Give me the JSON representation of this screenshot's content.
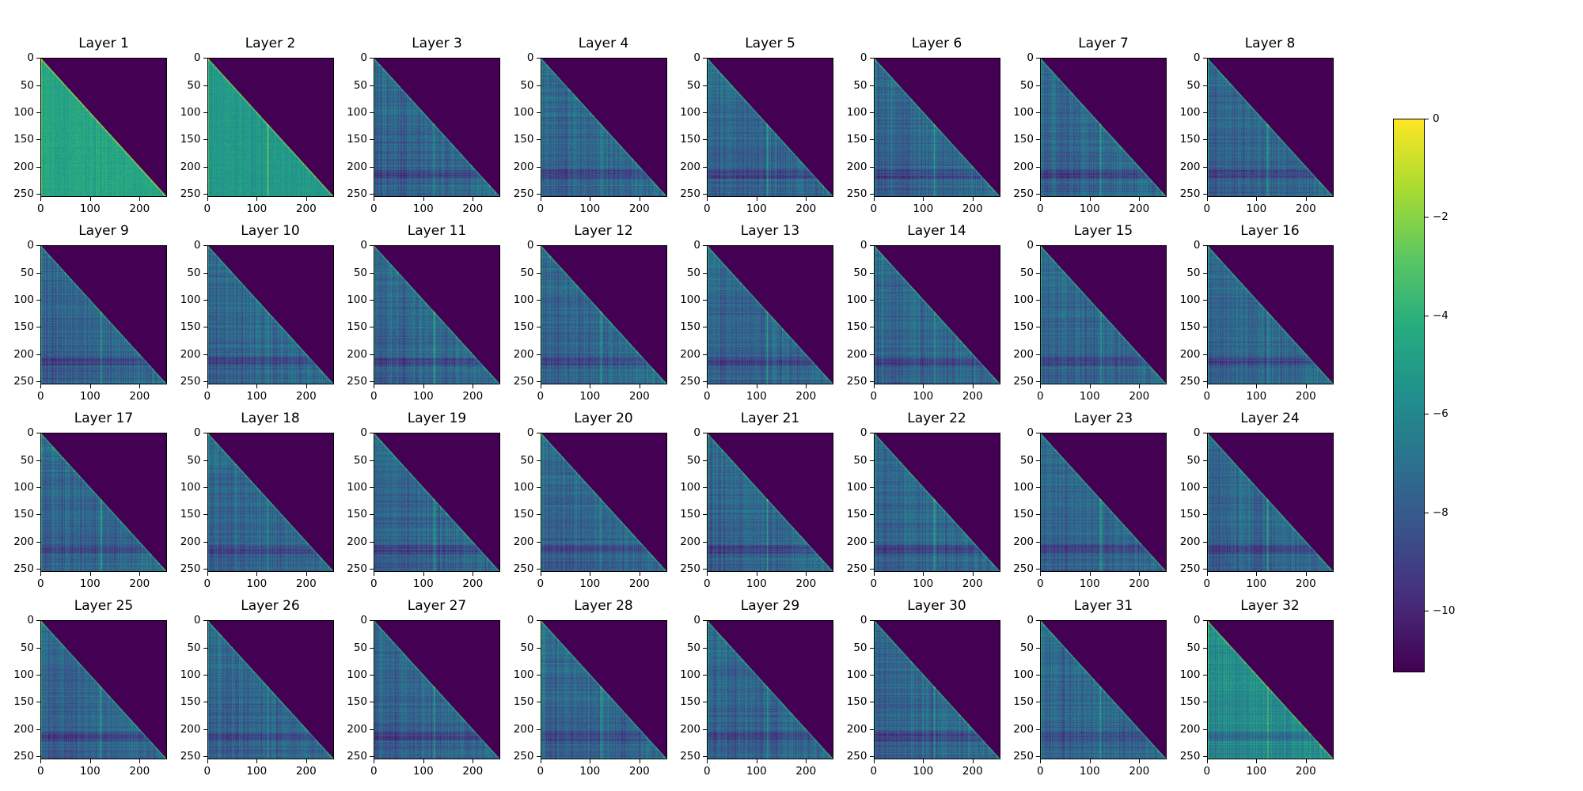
{
  "chart_data": {
    "type": "heatmap",
    "colormap": "viridis",
    "layout": "4x8 grid",
    "panels": [
      {
        "title": "Layer 1"
      },
      {
        "title": "Layer 2"
      },
      {
        "title": "Layer 3"
      },
      {
        "title": "Layer 4"
      },
      {
        "title": "Layer 5"
      },
      {
        "title": "Layer 6"
      },
      {
        "title": "Layer 7"
      },
      {
        "title": "Layer 8"
      },
      {
        "title": "Layer 9"
      },
      {
        "title": "Layer 10"
      },
      {
        "title": "Layer 11"
      },
      {
        "title": "Layer 12"
      },
      {
        "title": "Layer 13"
      },
      {
        "title": "Layer 14"
      },
      {
        "title": "Layer 15"
      },
      {
        "title": "Layer 16"
      },
      {
        "title": "Layer 17"
      },
      {
        "title": "Layer 18"
      },
      {
        "title": "Layer 19"
      },
      {
        "title": "Layer 20"
      },
      {
        "title": "Layer 21"
      },
      {
        "title": "Layer 22"
      },
      {
        "title": "Layer 23"
      },
      {
        "title": "Layer 24"
      },
      {
        "title": "Layer 25"
      },
      {
        "title": "Layer 26"
      },
      {
        "title": "Layer 27"
      },
      {
        "title": "Layer 28"
      },
      {
        "title": "Layer 29"
      },
      {
        "title": "Layer 30"
      },
      {
        "title": "Layer 31"
      },
      {
        "title": "Layer 32"
      }
    ],
    "matrix_size": 256,
    "mask": "lower-triangular (upper triangle at colormap minimum)",
    "xlim": [
      0,
      255
    ],
    "ylim": [
      255,
      0
    ],
    "xticks": [
      "0",
      "100",
      "200"
    ],
    "yticks": [
      "0",
      "50",
      "100",
      "150",
      "200",
      "250"
    ],
    "colorbar": {
      "range": [
        -11.25,
        0
      ],
      "ticks": [
        "0",
        "−2",
        "−4",
        "−6",
        "−8",
        "−10"
      ],
      "tick_values": [
        0,
        -2,
        -4,
        -6,
        -8,
        -10
      ]
    },
    "colors": {
      "min": "#440154",
      "max": "#fde725"
    }
  }
}
